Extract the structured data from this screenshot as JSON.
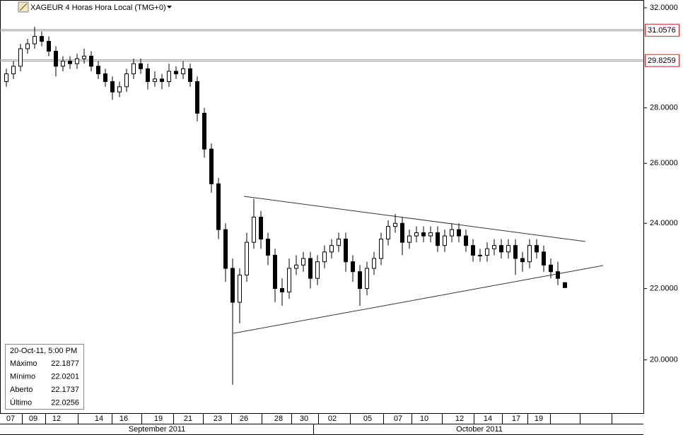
{
  "chart_data": {
    "type": "candlestick",
    "title": "XAGEUR 4 Horas Hora Local (TMG+0)",
    "log_scale": true,
    "ylim": [
      18.629,
      32.335
    ],
    "yticks": [
      {
        "value": 20,
        "label": "20.0000"
      },
      {
        "value": 22,
        "label": "22.0000"
      },
      {
        "value": 24,
        "label": "24.0000"
      },
      {
        "value": 26,
        "label": "26.0000"
      },
      {
        "value": 28,
        "label": "28.0000"
      },
      {
        "value": 32,
        "label": "32.0000"
      }
    ],
    "levels": [
      31.0576,
      29.8259
    ],
    "x_ticks": [
      "07",
      "09",
      "12",
      "14",
      "16",
      "19",
      "21",
      "23",
      "26",
      "28",
      "30",
      "02",
      "05",
      "07",
      "10",
      "12",
      "14",
      "17",
      "19"
    ],
    "months": [
      "September 2011",
      "October 2011"
    ],
    "open": [
      29.0,
      29.3,
      29.6,
      30.3,
      30.5,
      30.8,
      30.6,
      30.2,
      29.6,
      29.8,
      29.7,
      29.9,
      30.0,
      29.6,
      29.3,
      29.0,
      28.6,
      28.8,
      29.3,
      29.7,
      29.5,
      29.0,
      29.1,
      29.0,
      29.4,
      29.3,
      29.5,
      29.0,
      27.8,
      26.5,
      25.3,
      23.8,
      22.6,
      21.6,
      22.4,
      23.4,
      24.2,
      23.5,
      23.0,
      22.0,
      21.9,
      22.6,
      22.7,
      22.9,
      22.3,
      22.8,
      23.1,
      23.3,
      23.5,
      22.8,
      22.5,
      22.0,
      22.6,
      22.9,
      23.5,
      23.9,
      24.0,
      23.4,
      23.6,
      23.7,
      23.6,
      23.7,
      23.3,
      23.6,
      23.8,
      23.6,
      23.3,
      23.0,
      23.0,
      23.2,
      23.3,
      23.1,
      23.3,
      22.9,
      22.8,
      23.3,
      23.1,
      22.7,
      22.5,
      22.1737
    ],
    "high": [
      29.5,
      29.8,
      30.5,
      30.7,
      31.2,
      31.0,
      30.8,
      30.4,
      30.0,
      30.0,
      30.1,
      30.3,
      30.2,
      29.8,
      29.5,
      29.2,
      29.0,
      29.5,
      29.9,
      29.9,
      29.7,
      29.4,
      29.3,
      29.7,
      29.6,
      29.8,
      29.7,
      29.2,
      28.0,
      26.7,
      25.5,
      24.0,
      22.9,
      22.6,
      23.7,
      24.8,
      24.4,
      23.7,
      23.2,
      22.3,
      22.9,
      23.0,
      23.1,
      23.1,
      23.0,
      23.3,
      23.5,
      23.7,
      23.7,
      23.0,
      22.7,
      22.8,
      23.1,
      23.7,
      24.1,
      24.3,
      24.2,
      23.8,
      23.9,
      23.9,
      23.9,
      23.9,
      23.8,
      24.0,
      24.0,
      23.8,
      23.5,
      23.2,
      23.4,
      23.5,
      23.5,
      23.5,
      23.5,
      23.1,
      23.5,
      23.5,
      23.3,
      22.9,
      22.8,
      22.1877
    ],
    "low": [
      28.8,
      29.1,
      29.4,
      30.1,
      30.3,
      30.4,
      30.0,
      29.2,
      29.4,
      29.5,
      29.5,
      29.7,
      29.4,
      29.1,
      28.8,
      28.3,
      28.4,
      28.6,
      29.1,
      29.3,
      28.7,
      28.8,
      28.7,
      28.8,
      29.1,
      29.1,
      28.8,
      27.5,
      26.2,
      25.0,
      23.5,
      22.2,
      19.35,
      21.0,
      22.2,
      23.2,
      23.2,
      22.7,
      21.6,
      21.5,
      21.7,
      22.4,
      22.5,
      22.0,
      22.1,
      22.6,
      22.9,
      23.1,
      22.5,
      22.2,
      21.5,
      21.8,
      22.4,
      22.7,
      23.3,
      23.7,
      23.0,
      23.2,
      23.4,
      23.4,
      23.4,
      23.1,
      23.1,
      23.4,
      23.4,
      23.1,
      22.8,
      22.8,
      22.8,
      23.0,
      22.9,
      22.9,
      22.4,
      22.5,
      22.6,
      22.9,
      22.5,
      22.3,
      22.1,
      22.0201
    ],
    "close": [
      29.3,
      29.6,
      30.3,
      30.5,
      30.8,
      30.6,
      30.2,
      29.6,
      29.8,
      29.7,
      29.9,
      30.0,
      29.6,
      29.3,
      29.0,
      28.6,
      28.8,
      29.3,
      29.7,
      29.5,
      29.0,
      29.1,
      29.0,
      29.4,
      29.3,
      29.5,
      29.0,
      27.8,
      26.5,
      25.3,
      23.8,
      22.6,
      21.6,
      22.4,
      23.4,
      24.2,
      23.5,
      23.0,
      22.0,
      21.9,
      22.6,
      22.7,
      22.9,
      22.3,
      22.8,
      23.1,
      23.3,
      23.5,
      22.8,
      22.5,
      22.0,
      22.6,
      22.9,
      23.5,
      23.9,
      24.0,
      23.4,
      23.6,
      23.7,
      23.6,
      23.7,
      23.3,
      23.6,
      23.8,
      23.6,
      23.3,
      23.0,
      23.0,
      23.2,
      23.3,
      23.1,
      23.3,
      22.9,
      22.8,
      23.3,
      23.1,
      22.7,
      22.5,
      22.3,
      22.0256
    ]
  },
  "info_box": {
    "date": "20-Oct-11, 5:00 PM",
    "rows": [
      [
        "Máximo",
        "22.1877"
      ],
      [
        "Mínimo",
        "22.0201"
      ],
      [
        "Aberto",
        "22.1737"
      ],
      [
        "Último",
        "22.0256"
      ]
    ]
  }
}
